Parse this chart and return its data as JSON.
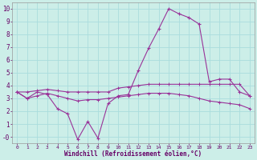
{
  "xlabel": "Windchill (Refroidissement éolien,°C)",
  "background_color": "#cceee8",
  "grid_color": "#aadddd",
  "line_color": "#993399",
  "xlim": [
    -0.5,
    23.5
  ],
  "ylim": [
    -0.5,
    10.5
  ],
  "ytick_vals": [
    0,
    1,
    2,
    3,
    4,
    5,
    6,
    7,
    8,
    9,
    10
  ],
  "ytick_labels": [
    "-0",
    "1",
    "2",
    "3",
    "4",
    "5",
    "6",
    "7",
    "8",
    "9",
    "10"
  ],
  "xticks": [
    0,
    1,
    2,
    3,
    4,
    5,
    6,
    7,
    8,
    9,
    10,
    11,
    12,
    13,
    14,
    15,
    16,
    17,
    18,
    19,
    20,
    21,
    22,
    23
  ],
  "line1_x": [
    0,
    1,
    2,
    3,
    4,
    5,
    6,
    7,
    8,
    9,
    10,
    11,
    12,
    13,
    14,
    15,
    16,
    17,
    18,
    19,
    20,
    21,
    22,
    23
  ],
  "line1_y": [
    3.5,
    3.0,
    3.5,
    3.3,
    2.2,
    1.8,
    -0.2,
    1.2,
    -0.1,
    2.6,
    3.2,
    3.3,
    5.2,
    6.9,
    8.4,
    10.0,
    9.6,
    9.3,
    8.8,
    4.3,
    4.5,
    4.5,
    3.5,
    3.2
  ],
  "line2_x": [
    0,
    1,
    2,
    3,
    4,
    5,
    6,
    7,
    8,
    9,
    10,
    11,
    12,
    13,
    14,
    15,
    16,
    17,
    18,
    19,
    20,
    21,
    22,
    23
  ],
  "line2_y": [
    3.5,
    3.5,
    3.6,
    3.7,
    3.6,
    3.5,
    3.5,
    3.5,
    3.5,
    3.5,
    3.8,
    3.9,
    4.0,
    4.1,
    4.1,
    4.1,
    4.1,
    4.1,
    4.1,
    4.1,
    4.1,
    4.1,
    4.1,
    3.2
  ],
  "line3_x": [
    0,
    1,
    2,
    3,
    4,
    5,
    6,
    7,
    8,
    9,
    10,
    11,
    12,
    13,
    14,
    15,
    16,
    17,
    18,
    19,
    20,
    21,
    22,
    23
  ],
  "line3_y": [
    3.5,
    3.0,
    3.2,
    3.4,
    3.2,
    3.0,
    2.8,
    2.9,
    2.9,
    3.0,
    3.1,
    3.2,
    3.3,
    3.4,
    3.4,
    3.4,
    3.3,
    3.2,
    3.0,
    2.8,
    2.7,
    2.6,
    2.5,
    2.2
  ]
}
